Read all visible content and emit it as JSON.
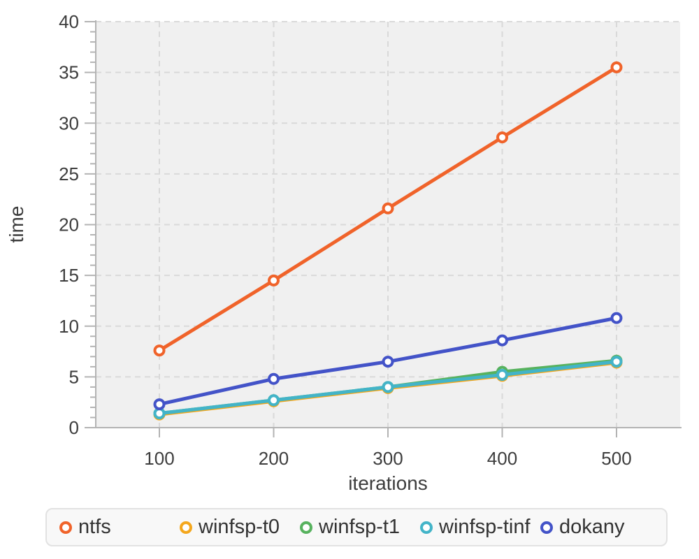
{
  "chart_data": {
    "type": "line",
    "title": "",
    "xlabel": "iterations",
    "ylabel": "time",
    "categories": [
      100,
      200,
      300,
      400,
      500
    ],
    "ylim": [
      0,
      40
    ],
    "yticks": [
      0,
      5,
      10,
      15,
      20,
      25,
      30,
      35,
      40
    ],
    "y_minor_step": 1,
    "grid": "dashed",
    "legend_position": "bottom",
    "series": [
      {
        "name": "ntfs",
        "color": "#f0632a",
        "values": [
          7.6,
          14.5,
          21.6,
          28.6,
          35.5
        ]
      },
      {
        "name": "winfsp-t0",
        "color": "#f4a71d",
        "values": [
          1.3,
          2.6,
          3.9,
          5.1,
          6.4
        ]
      },
      {
        "name": "winfsp-t1",
        "color": "#57b25e",
        "values": [
          1.4,
          2.7,
          4.0,
          5.5,
          6.6
        ]
      },
      {
        "name": "winfsp-tinf",
        "color": "#43b4c8",
        "values": [
          1.4,
          2.7,
          4.0,
          5.2,
          6.5
        ]
      },
      {
        "name": "dokany",
        "color": "#4353c8",
        "values": [
          2.3,
          4.8,
          6.5,
          8.6,
          10.8
        ]
      }
    ]
  },
  "legend": {
    "items": [
      {
        "label": "ntfs",
        "color": "#f0632a"
      },
      {
        "label": "winfsp-t0",
        "color": "#f4a71d"
      },
      {
        "label": "winfsp-t1",
        "color": "#57b25e"
      },
      {
        "label": "winfsp-tinf",
        "color": "#43b4c8"
      },
      {
        "label": "dokany",
        "color": "#4353c8"
      }
    ]
  },
  "colors": {
    "plot_bg": "#f0f0f0",
    "grid": "#d9d9d9",
    "axis": "#b3b3b3",
    "text": "#3d3d3d",
    "legend_bg": "#f8f8f8",
    "legend_border": "#e2e2e2"
  }
}
